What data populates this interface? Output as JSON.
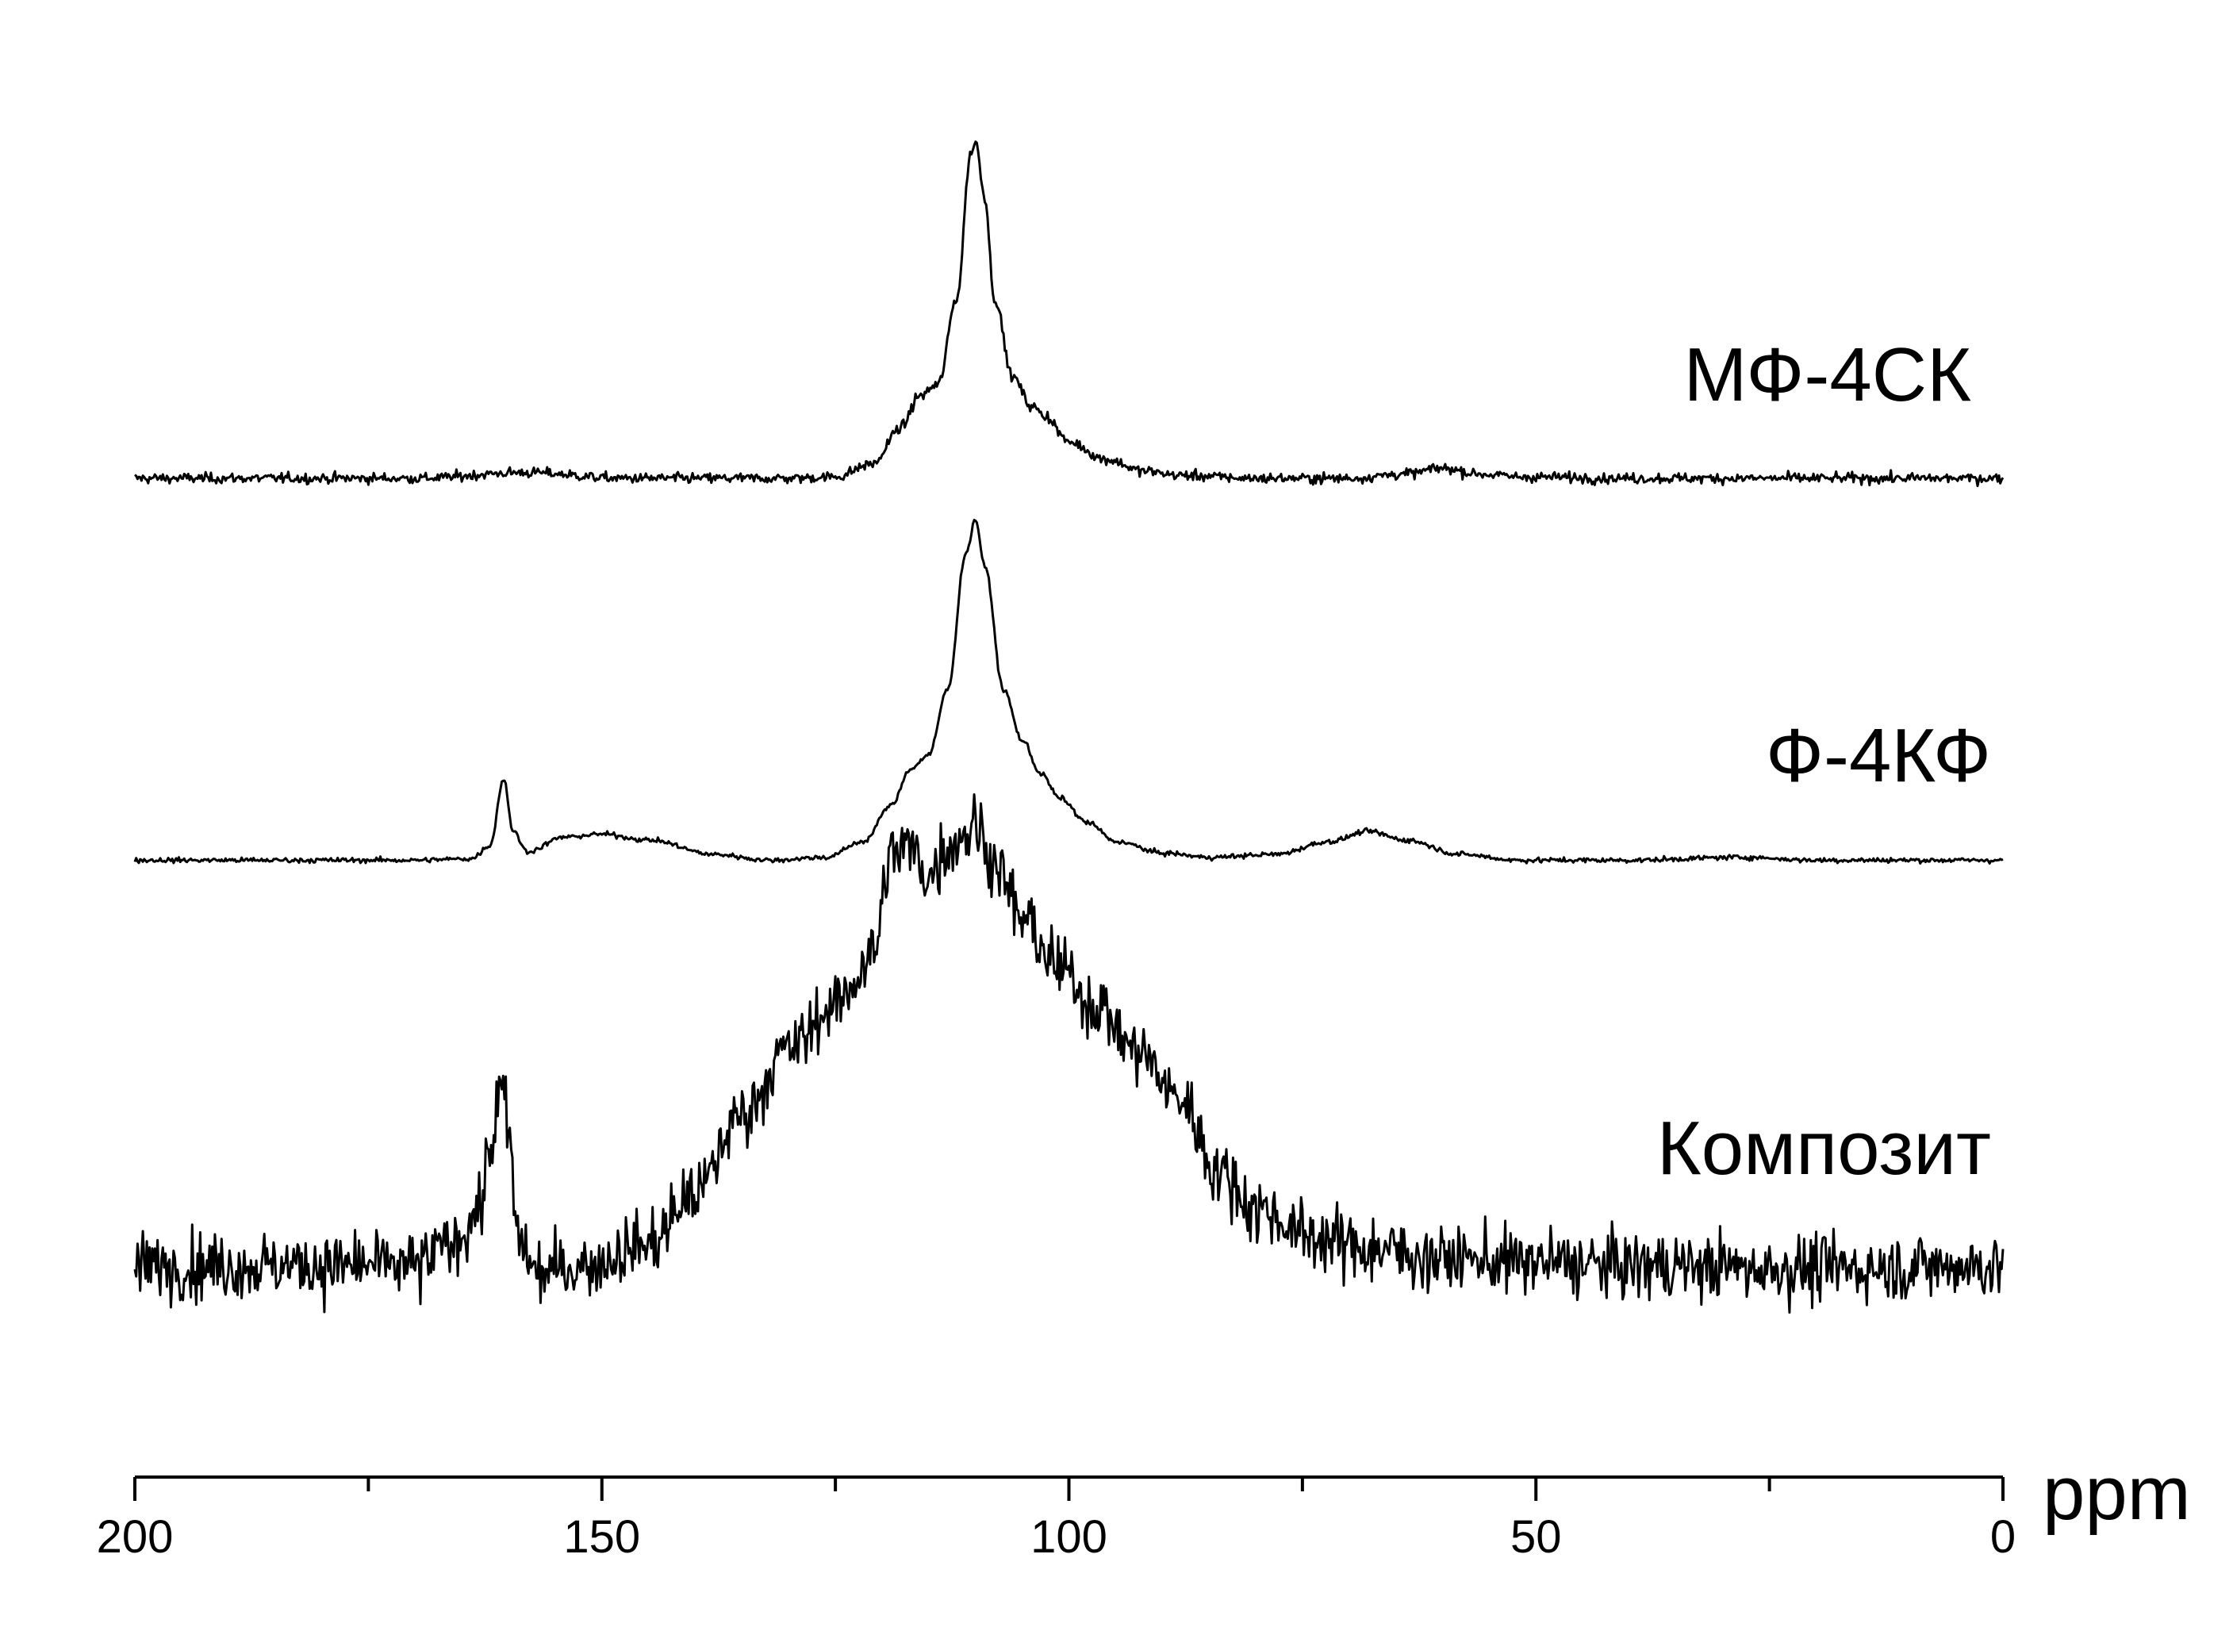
{
  "chart_data": {
    "type": "line",
    "xlabel": "ppm",
    "xlim": [
      200,
      0
    ],
    "x_reversed": true,
    "x_ticks": [
      {
        "value": 200,
        "label": "200"
      },
      {
        "value": 150,
        "label": "150"
      },
      {
        "value": 100,
        "label": "100"
      },
      {
        "value": 50,
        "label": "50"
      },
      {
        "value": 0,
        "label": "0"
      }
    ],
    "x_minor_ticks": [
      175,
      125,
      75,
      25
    ],
    "y_axis_shown": false,
    "grid": false,
    "line_color": "#000000",
    "series": [
      {
        "name": "МФ-4СК",
        "noise": 2.5,
        "points": [
          [
            200,
            5
          ],
          [
            170,
            5
          ],
          [
            158,
            9
          ],
          [
            148,
            5
          ],
          [
            130,
            5
          ],
          [
            125,
            6
          ],
          [
            121,
            15
          ],
          [
            118,
            40
          ],
          [
            116,
            62
          ],
          [
            114,
            70
          ],
          [
            112,
            130
          ],
          [
            110.5,
            230
          ],
          [
            110,
            238
          ],
          [
            109,
            200
          ],
          [
            108,
            130
          ],
          [
            106,
            75
          ],
          [
            104,
            55
          ],
          [
            102.5,
            48
          ],
          [
            100,
            30
          ],
          [
            96,
            18
          ],
          [
            92,
            10
          ],
          [
            88,
            7
          ],
          [
            80,
            5
          ],
          [
            70,
            5
          ],
          [
            64,
            8
          ],
          [
            60,
            12
          ],
          [
            56,
            8
          ],
          [
            52,
            6
          ],
          [
            40,
            5
          ],
          [
            20,
            5
          ],
          [
            0,
            5
          ]
        ]
      },
      {
        "name": "Ф-4КФ",
        "noise": 1.2,
        "points": [
          [
            200,
            2
          ],
          [
            170,
            2
          ],
          [
            164,
            3
          ],
          [
            162,
            12
          ],
          [
            160.5,
            58
          ],
          [
            159.5,
            22
          ],
          [
            158,
            8
          ],
          [
            154,
            18
          ],
          [
            150,
            20
          ],
          [
            145,
            16
          ],
          [
            138,
            6
          ],
          [
            132,
            2
          ],
          [
            126,
            4
          ],
          [
            122,
            15
          ],
          [
            119,
            40
          ],
          [
            117,
            65
          ],
          [
            115,
            75
          ],
          [
            113,
            120
          ],
          [
            111,
            215
          ],
          [
            110,
            238
          ],
          [
            109,
            205
          ],
          [
            107,
            120
          ],
          [
            105,
            85
          ],
          [
            103,
            62
          ],
          [
            101,
            45
          ],
          [
            98,
            28
          ],
          [
            95,
            15
          ],
          [
            90,
            7
          ],
          [
            85,
            4
          ],
          [
            78,
            6
          ],
          [
            72,
            15
          ],
          [
            68,
            22
          ],
          [
            64,
            16
          ],
          [
            58,
            6
          ],
          [
            52,
            2
          ],
          [
            40,
            2
          ],
          [
            28,
            4
          ],
          [
            20,
            2
          ],
          [
            0,
            2
          ]
        ]
      },
      {
        "name": "Композит",
        "noise": 16,
        "points": [
          [
            200,
            30
          ],
          [
            170,
            30
          ],
          [
            166,
            45
          ],
          [
            163,
            70
          ],
          [
            162,
            110
          ],
          [
            161,
            145
          ],
          [
            160.5,
            150
          ],
          [
            160,
            120
          ],
          [
            159,
            50
          ],
          [
            157,
            25
          ],
          [
            152,
            30
          ],
          [
            145,
            45
          ],
          [
            140,
            80
          ],
          [
            135,
            135
          ],
          [
            130,
            180
          ],
          [
            125,
            210
          ],
          [
            121,
            245
          ],
          [
            119,
            315
          ],
          [
            117,
            320
          ],
          [
            115,
            300
          ],
          [
            113,
            320
          ],
          [
            111,
            330
          ],
          [
            110,
            335
          ],
          [
            108,
            310
          ],
          [
            105,
            270
          ],
          [
            101,
            235
          ],
          [
            97,
            210
          ],
          [
            93,
            180
          ],
          [
            88,
            145
          ],
          [
            84,
            95
          ],
          [
            80,
            70
          ],
          [
            74,
            50
          ],
          [
            68,
            42
          ],
          [
            60,
            35
          ],
          [
            50,
            32
          ],
          [
            40,
            30
          ],
          [
            20,
            28
          ],
          [
            0,
            30
          ]
        ]
      }
    ]
  }
}
